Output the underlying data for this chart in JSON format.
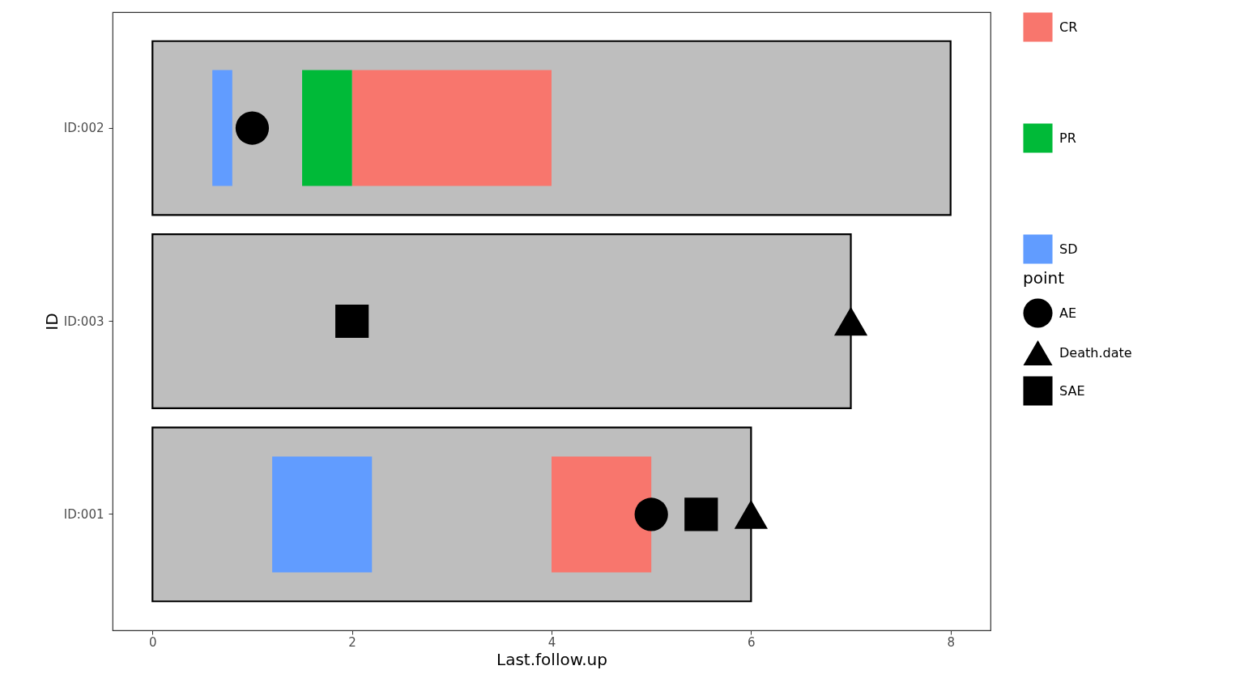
{
  "chart_data": {
    "type": "bar",
    "orientation": "horizontal",
    "xlabel": "Last.follow.up",
    "ylabel": "ID",
    "legend_title": "point",
    "legend": "right",
    "grid": false,
    "categories": [
      "ID:002",
      "ID:003",
      "ID:001"
    ],
    "xlim": [
      -0.4,
      8.4
    ],
    "xticks": [
      0,
      2,
      4,
      6,
      8
    ],
    "series": [
      {
        "color": "#bebebe",
        "values": [
          8,
          7,
          6
        ]
      },
      {
        "type": "bar",
        "name": "CR",
        "color": "#f8766d",
        "base": [
          2,
          null,
          4
        ],
        "values": [
          2,
          null,
          1
        ]
      },
      {
        "type": "bar",
        "name": "PR",
        "color": "#00ba38",
        "base": [
          1.5,
          null,
          null
        ],
        "values": [
          0.5,
          null,
          null
        ]
      },
      {
        "type": "bar",
        "name": "SD",
        "color": "#619cff",
        "base": [
          0.6,
          null,
          1.2
        ],
        "values": [
          0.2,
          null,
          1.0
        ]
      },
      {
        "type": "scatter",
        "name": "AE",
        "color": "#000000",
        "marker": "circle",
        "x": [
          "ID:002",
          "ID:001"
        ],
        "values": [
          1,
          5
        ]
      },
      {
        "type": "scatter",
        "name": "Death.date",
        "color": "#000000",
        "marker": "triangle",
        "x": [
          "ID:003",
          "ID:001"
        ],
        "values": [
          7,
          6
        ]
      },
      {
        "type": "scatter",
        "name": "SAE",
        "color": "#000000",
        "marker": "square",
        "x": [
          "ID:003",
          "ID:001"
        ],
        "values": [
          2,
          5.5
        ]
      }
    ]
  }
}
